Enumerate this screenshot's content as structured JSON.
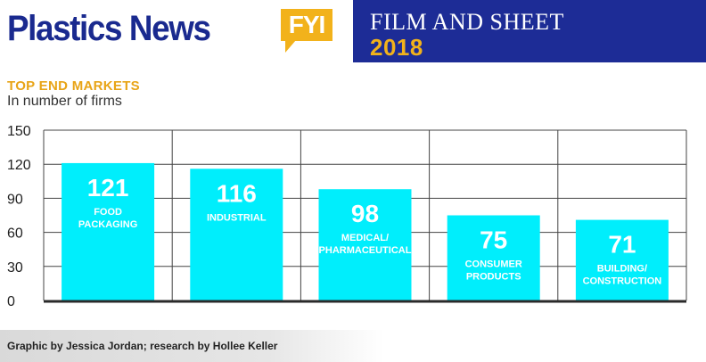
{
  "brand": {
    "title": "Plastics News",
    "badge": "FYI"
  },
  "banner": {
    "subject": "FILM AND SHEET",
    "year": "2018"
  },
  "colors": {
    "navy": "#1d2c96",
    "gold": "#f2b21b",
    "bar": "#00eefc",
    "bar_text": "#ffffff",
    "grid": "#444444"
  },
  "chart_data": {
    "type": "bar",
    "title": "TOP END MARKETS",
    "subtitle": "In number of firms",
    "categories": [
      "FOOD\nPACKAGING",
      "INDUSTRIAL",
      "MEDICAL/\nPHARMACEUTICAL",
      "CONSUMER\nPRODUCTS",
      "BUILDING/\nCONSTRUCTION"
    ],
    "values": [
      121,
      116,
      98,
      75,
      71
    ],
    "ylim": [
      0,
      150
    ],
    "yticks": [
      0,
      30,
      60,
      90,
      120,
      150
    ],
    "grid": true
  },
  "credit": "Graphic by Jessica Jordan; research by Hollee Keller"
}
